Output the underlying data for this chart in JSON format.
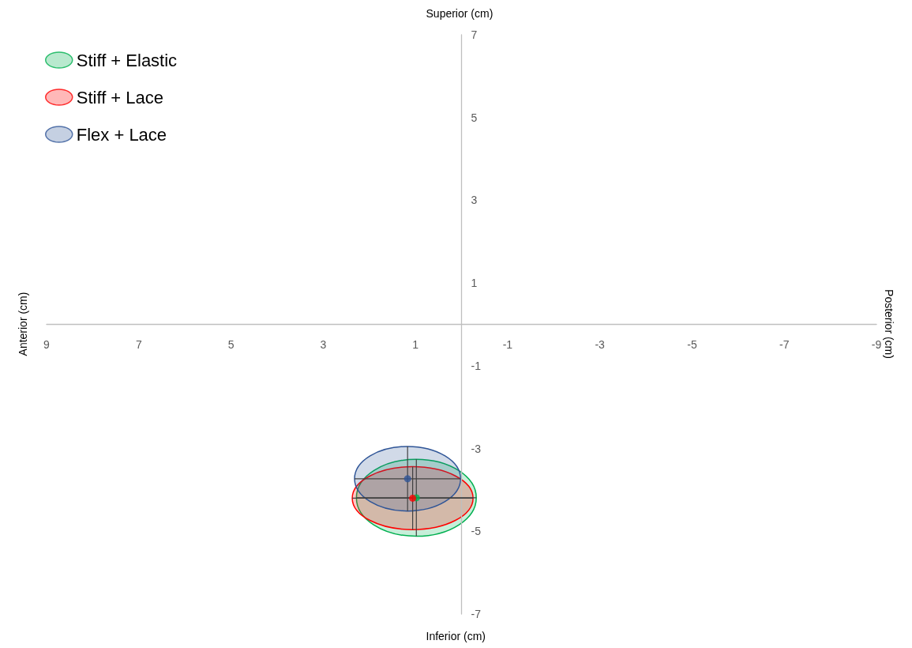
{
  "chart_data": {
    "type": "scatter",
    "annotations": [
      "Superior (cm)",
      "Inferior (cm)",
      "Anterior (cm)",
      "Posterior (cm)"
    ],
    "xlim": [
      9,
      -9
    ],
    "xticks": [
      9,
      7,
      5,
      3,
      1,
      -1,
      -3,
      -5,
      -7,
      -9
    ],
    "ylim": [
      -7,
      7
    ],
    "yticks": [
      7,
      5,
      3,
      1,
      -1,
      -3,
      -5,
      -7
    ],
    "grid": false,
    "legend": "top left",
    "marker": "circle",
    "series": [
      {
        "name": "Stiff + Elastic",
        "color": "#00b050",
        "x": [
          0.98
        ],
        "values": [
          -4.19
        ],
        "xerrors": [
          1.3
        ],
        "errors": [
          0.93
        ]
      },
      {
        "name": "Stiff + Lace",
        "color": "#ff0000",
        "x": [
          1.06
        ],
        "values": [
          -4.2
        ],
        "xerrors": [
          1.31
        ],
        "errors": [
          0.76
        ]
      },
      {
        "name": "Flex + Lace",
        "color": "#2f5597",
        "x": [
          1.17
        ],
        "values": [
          -3.73
        ],
        "xerrors": [
          1.15
        ],
        "errors": [
          0.78
        ]
      }
    ]
  }
}
